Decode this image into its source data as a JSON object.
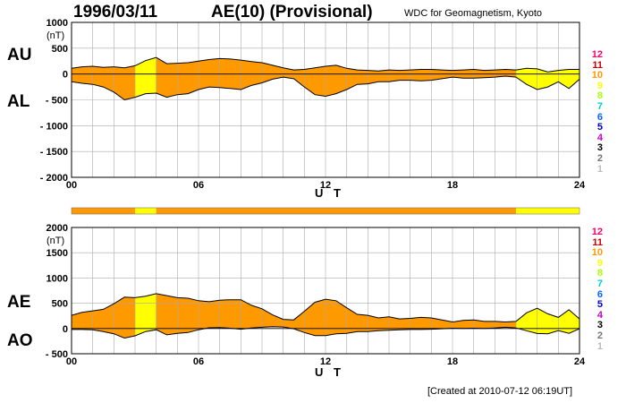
{
  "header": {
    "date": "1996/03/11",
    "title": "AE(10) (Provisional)",
    "source": "WDC for Geomagnetism, Kyoto"
  },
  "footer": {
    "created": "[Created at 2010-07-12 06:19UT]"
  },
  "legend": {
    "items": [
      {
        "label": "12",
        "color": "#ff0066"
      },
      {
        "label": "11",
        "color": "#cc0000"
      },
      {
        "label": "10",
        "color": "#ff9900"
      },
      {
        "label": "9",
        "color": "#ffff00"
      },
      {
        "label": "8",
        "color": "#aaff00"
      },
      {
        "label": "7",
        "color": "#00cccc"
      },
      {
        "label": "6",
        "color": "#0066ff"
      },
      {
        "label": "5",
        "color": "#0000cc"
      },
      {
        "label": "4",
        "color": "#cc00cc"
      },
      {
        "label": "3",
        "color": "#000000"
      },
      {
        "label": "2",
        "color": "#777777"
      },
      {
        "label": "1",
        "color": "#bbbbbb"
      }
    ]
  },
  "chart_data": [
    {
      "type": "area",
      "series_labels": {
        "upper": "AU",
        "lower": "AL"
      },
      "ylabel_unit": "(nT)",
      "xlabel": "U T",
      "xlim": [
        0,
        24
      ],
      "ylim": [
        -2000,
        1000
      ],
      "yticks": [
        "1000",
        "500",
        "0",
        "- 500",
        "- 1000",
        "- 1500",
        "- 2000"
      ],
      "xticks": [
        "00",
        "06",
        "12",
        "18",
        "24"
      ],
      "grid": true,
      "station_color_bands": [
        {
          "start": 0,
          "end": 3,
          "station_count": 10
        },
        {
          "start": 3,
          "end": 4,
          "station_count": 9
        },
        {
          "start": 4,
          "end": 21,
          "station_count": 10
        },
        {
          "start": 21,
          "end": 24,
          "station_count": 9
        }
      ],
      "x": [
        0,
        0.5,
        1,
        1.5,
        2,
        2.5,
        3,
        3.5,
        4,
        4.5,
        5,
        5.5,
        6,
        6.5,
        7,
        7.5,
        8,
        8.5,
        9,
        9.5,
        10,
        10.5,
        11,
        11.5,
        12,
        12.5,
        13,
        13.5,
        14,
        14.5,
        15,
        15.5,
        16,
        16.5,
        17,
        17.5,
        18,
        18.5,
        19,
        19.5,
        20,
        20.5,
        21,
        21.5,
        22,
        22.5,
        23,
        23.5,
        24
      ],
      "AU": [
        110,
        140,
        150,
        130,
        140,
        120,
        160,
        260,
        320,
        200,
        210,
        220,
        250,
        280,
        300,
        290,
        270,
        240,
        220,
        170,
        120,
        80,
        90,
        120,
        150,
        170,
        110,
        80,
        70,
        60,
        80,
        70,
        80,
        90,
        90,
        80,
        70,
        80,
        90,
        70,
        80,
        90,
        80,
        110,
        100,
        40,
        70,
        90,
        90
      ],
      "AL": [
        -150,
        -180,
        -200,
        -250,
        -350,
        -500,
        -450,
        -380,
        -370,
        -450,
        -400,
        -380,
        -300,
        -250,
        -260,
        -280,
        -300,
        -220,
        -170,
        -100,
        -60,
        -90,
        -250,
        -400,
        -430,
        -380,
        -300,
        -200,
        -190,
        -150,
        -150,
        -120,
        -120,
        -130,
        -120,
        -90,
        -60,
        -80,
        -80,
        -70,
        -60,
        -40,
        -60,
        -200,
        -300,
        -250,
        -150,
        -280,
        -100
      ]
    },
    {
      "type": "area",
      "series_labels": {
        "upper": "AE",
        "lower": "AO"
      },
      "ylabel_unit": "(nT)",
      "xlabel": "U T",
      "xlim": [
        0,
        24
      ],
      "ylim": [
        -500,
        2000
      ],
      "yticks": [
        "2000",
        "1500",
        "1000",
        "500",
        "0",
        "- 500"
      ],
      "xticks": [
        "00",
        "06",
        "12",
        "18",
        "24"
      ],
      "grid": true,
      "x": [
        0,
        0.5,
        1,
        1.5,
        2,
        2.5,
        3,
        3.5,
        4,
        4.5,
        5,
        5.5,
        6,
        6.5,
        7,
        7.5,
        8,
        8.5,
        9,
        9.5,
        10,
        10.5,
        11,
        11.5,
        12,
        12.5,
        13,
        13.5,
        14,
        14.5,
        15,
        15.5,
        16,
        16.5,
        17,
        17.5,
        18,
        18.5,
        19,
        19.5,
        20,
        20.5,
        21,
        21.5,
        22,
        22.5,
        23,
        23.5,
        24
      ],
      "AE": [
        260,
        320,
        350,
        380,
        490,
        620,
        610,
        640,
        690,
        650,
        610,
        600,
        550,
        530,
        560,
        570,
        570,
        460,
        390,
        270,
        180,
        170,
        340,
        520,
        580,
        550,
        410,
        280,
        260,
        210,
        230,
        190,
        200,
        220,
        210,
        170,
        130,
        160,
        170,
        140,
        140,
        130,
        140,
        310,
        400,
        290,
        220,
        370,
        190
      ],
      "AO": [
        -20,
        -20,
        -25,
        -60,
        -105,
        -190,
        -145,
        -60,
        -25,
        -125,
        -95,
        -80,
        -25,
        15,
        20,
        5,
        -15,
        10,
        25,
        35,
        30,
        -5,
        -80,
        -140,
        -140,
        -105,
        -95,
        -60,
        -60,
        -45,
        -35,
        -25,
        -20,
        -20,
        -15,
        -5,
        5,
        0,
        5,
        0,
        10,
        25,
        10,
        -45,
        -100,
        -105,
        -40,
        -95,
        -5
      ]
    }
  ]
}
